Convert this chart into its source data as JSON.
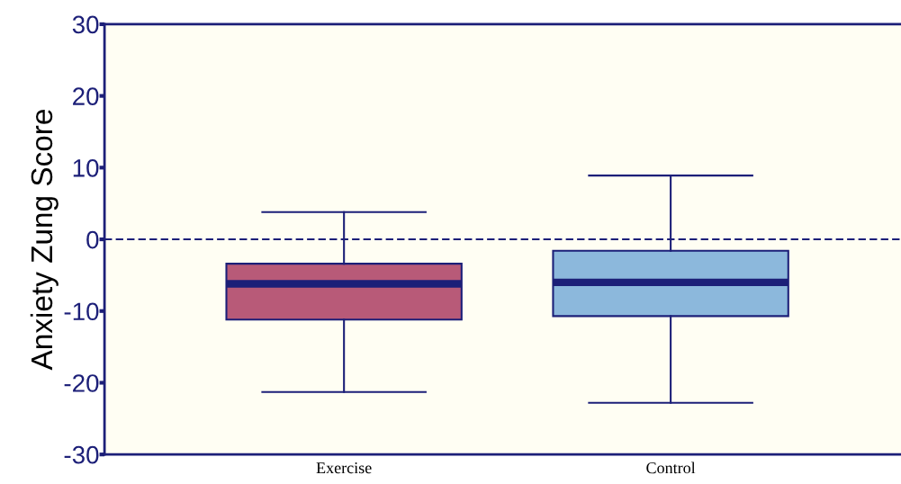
{
  "chart_data": {
    "type": "box",
    "ylabel": "Anxiety Zung Score",
    "categories": [
      "Exercise",
      "Control"
    ],
    "boxes": [
      {
        "low": -21.3,
        "q1": -11.2,
        "median": -6.2,
        "q3": -3.4,
        "high": 3.8
      },
      {
        "low": -22.8,
        "q1": -10.7,
        "median": -6.0,
        "q3": -1.6,
        "high": 8.9
      }
    ],
    "colors": [
      "#b85a78",
      "#8cb8dc"
    ],
    "ylim": [
      -30,
      30
    ],
    "yticks": [
      -30,
      -20,
      -10,
      0,
      10,
      20,
      30
    ],
    "ref_lines": [
      {
        "axis": "y",
        "value": 0,
        "color": "#1c1f78",
        "line_style": "dashed"
      }
    ],
    "grid": false
  }
}
